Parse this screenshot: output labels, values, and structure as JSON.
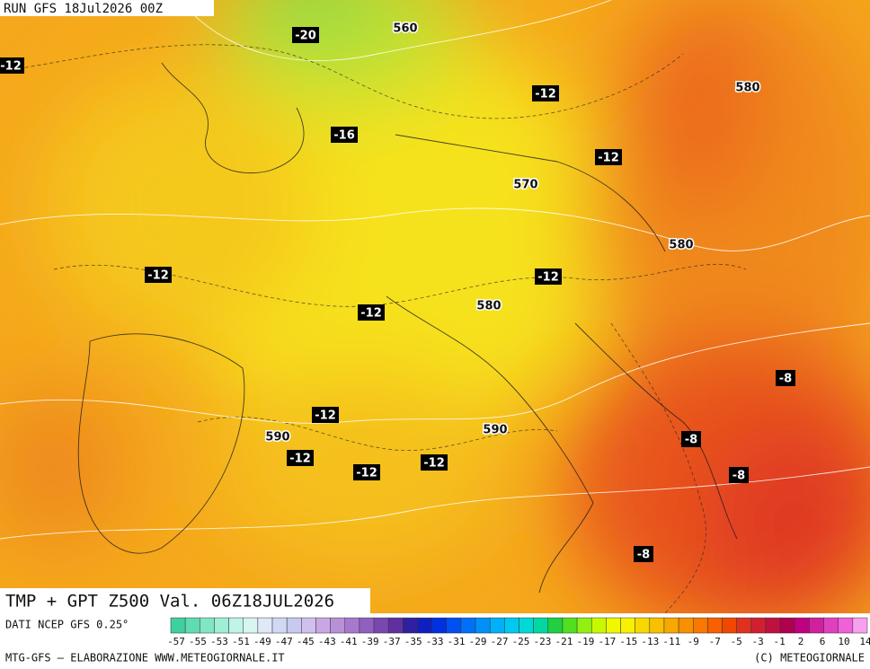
{
  "header": {
    "run": "RUN GFS 18Jul2026 00Z"
  },
  "map": {
    "temperature_labels": [
      "-20",
      "-12",
      "-12",
      "-16",
      "-12",
      "-12",
      "-12",
      "-12",
      "-8",
      "-12",
      "-8",
      "-12",
      "-12",
      "-12",
      "-8",
      "-8"
    ],
    "height_labels": [
      "560",
      "580",
      "570",
      "580",
      "580",
      "590",
      "590"
    ]
  },
  "footer": {
    "product": "TMP + GPT Z500 Val. 06Z18JUL2026",
    "source": "DATI NCEP GFS 0.25°",
    "credit": "MTG-GFS — ELABORAZIONE WWW.METEOGIORNALE.IT",
    "copyright": "(C) METEOGIORNALE"
  },
  "scale": {
    "labels": [
      "-57",
      "-55",
      "-53",
      "-51",
      "-49",
      "-47",
      "-45",
      "-43",
      "-41",
      "-39",
      "-37",
      "-35",
      "-33",
      "-31",
      "-29",
      "-27",
      "-25",
      "-23",
      "-21",
      "-19",
      "-17",
      "-15",
      "-13",
      "-11",
      "-9",
      "-7",
      "-5",
      "-3",
      "-1",
      "2",
      "6",
      "10",
      "14"
    ],
    "colors": [
      "#3fd0a0",
      "#5fdcb0",
      "#80e6c4",
      "#a0eed6",
      "#c0f4e6",
      "#d8f6f0",
      "#e0e8f8",
      "#d0d8f4",
      "#c8c8f0",
      "#d0c0ec",
      "#c8a8e4",
      "#b890d8",
      "#a878cc",
      "#9060c0",
      "#7848b0",
      "#6030a0",
      "#3020a0",
      "#1020c0",
      "#0030e0",
      "#0050f0",
      "#0070f8",
      "#0090f8",
      "#00b0f8",
      "#00c8f0",
      "#00d8d8",
      "#00d8a0",
      "#20d040",
      "#50e020",
      "#90f010",
      "#c8f800",
      "#f0f800",
      "#f8f000",
      "#f8d800",
      "#f8c000",
      "#f8a800",
      "#f89000",
      "#f87800",
      "#f86000",
      "#f04800",
      "#e03020",
      "#d02030",
      "#c01040",
      "#b00050",
      "#c00080",
      "#d020a0",
      "#e040c0",
      "#f060d8",
      "#f8a0f0"
    ]
  }
}
